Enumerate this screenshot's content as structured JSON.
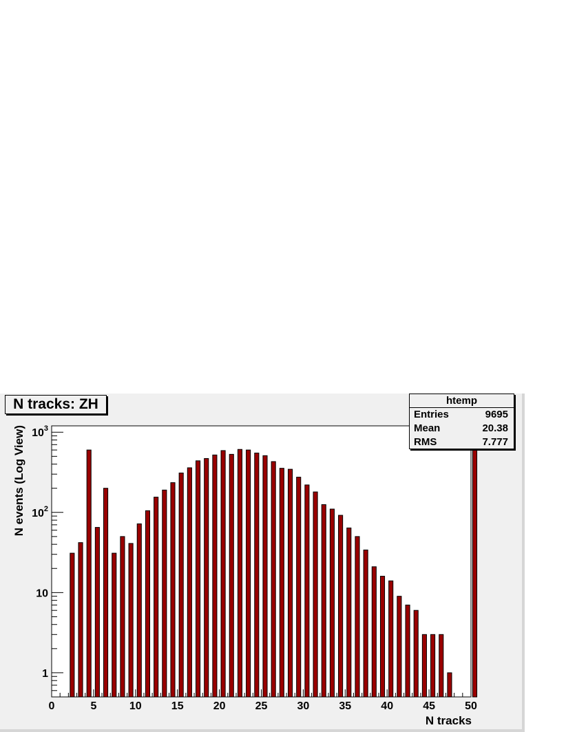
{
  "chart_data": {
    "type": "bar",
    "title": "N tracks: ZH",
    "xlabel": "N tracks",
    "ylabel": "N events (Log View)",
    "xlim": [
      0,
      50
    ],
    "ylog": true,
    "ylim": [
      0.5,
      1200
    ],
    "x_ticks": [
      "0",
      "5",
      "10",
      "15",
      "20",
      "25",
      "30",
      "35",
      "40",
      "45",
      "50"
    ],
    "y_ticks": [
      {
        "value": 1,
        "base": "1",
        "exp": ""
      },
      {
        "value": 10,
        "base": "10",
        "exp": ""
      },
      {
        "value": 100,
        "base": "10",
        "exp": "2"
      },
      {
        "value": 1000,
        "base": "10",
        "exp": "3"
      }
    ],
    "bar_color": "#990000",
    "x": [
      2,
      3,
      4,
      5,
      6,
      7,
      8,
      9,
      10,
      11,
      12,
      13,
      14,
      15,
      16,
      17,
      18,
      19,
      20,
      21,
      22,
      23,
      24,
      25,
      26,
      27,
      28,
      29,
      30,
      31,
      32,
      33,
      34,
      35,
      36,
      37,
      38,
      39,
      40,
      41,
      42,
      43,
      44,
      45,
      46,
      47,
      50
    ],
    "values": [
      31,
      42,
      600,
      65,
      200,
      31,
      50,
      41,
      72,
      105,
      155,
      190,
      235,
      310,
      360,
      440,
      470,
      520,
      590,
      530,
      610,
      600,
      550,
      510,
      430,
      355,
      345,
      275,
      220,
      180,
      125,
      110,
      92,
      64,
      50,
      34,
      21,
      16,
      14,
      9,
      7,
      6,
      3,
      3,
      3,
      1,
      600
    ],
    "stats": {
      "name": "htemp",
      "rows": [
        {
          "label": "Entries",
          "value": "9695"
        },
        {
          "label": "Mean",
          "value": "20.38"
        },
        {
          "label": "RMS",
          "value": "7.777"
        }
      ]
    }
  }
}
